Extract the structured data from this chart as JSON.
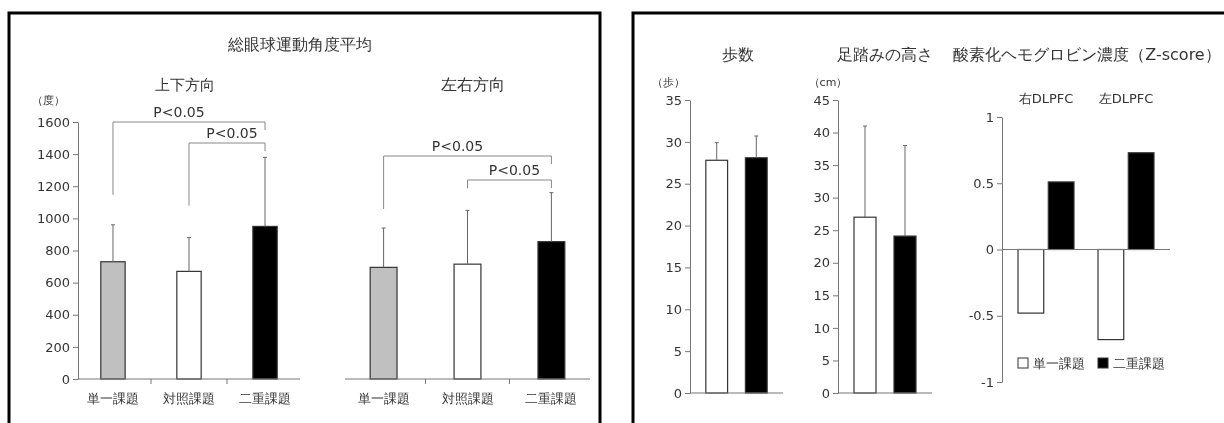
{
  "chart_data": [
    {
      "type": "bar",
      "title": "総眼球運動角度平均",
      "subtitle": "上下方向",
      "ylabel": "（度）",
      "categories": [
        "単一課題",
        "対照課題",
        "二重課題"
      ],
      "values": [
        730,
        670,
        950
      ],
      "colors": [
        "#c0c0c0",
        "#ffffff",
        "#000000"
      ],
      "errors": [
        [
          730,
          960
        ],
        [
          670,
          880
        ],
        [
          950,
          1380
        ]
      ],
      "ylim": [
        0,
        1600
      ],
      "yticks": [
        0,
        200,
        400,
        600,
        800,
        1000,
        1200,
        1400,
        1600
      ],
      "annotations": [
        "P<0.05",
        "P<0.05"
      ]
    },
    {
      "type": "bar",
      "title": "左右方向",
      "categories": [
        "単一課題",
        "対照課題",
        "二重課題"
      ],
      "values": [
        695,
        715,
        855
      ],
      "colors": [
        "#c0c0c0",
        "#ffffff",
        "#000000"
      ],
      "errors": [
        [
          695,
          940
        ],
        [
          715,
          1050
        ],
        [
          855,
          1160
        ]
      ],
      "ylim": [
        0,
        1600
      ],
      "tick_labels": "x",
      "annotations": [
        "P<0.05",
        "P<0.05"
      ]
    },
    {
      "type": "bar",
      "title": "歩数",
      "ylabel": "（歩）",
      "categories": [
        null,
        null
      ],
      "values": [
        27.8,
        28.1
      ],
      "colors": [
        "#ffffff",
        "#000000"
      ],
      "errors": [
        [
          27.8,
          29.9
        ],
        [
          28.1,
          30.7
        ]
      ],
      "ylim": [
        0,
        35
      ],
      "yticks": [
        0,
        5,
        10,
        15,
        20,
        25,
        30,
        35
      ]
    },
    {
      "type": "bar",
      "title": "足踏みの高さ",
      "ylabel": "（cm）",
      "categories": [
        null,
        null
      ],
      "values": [
        27,
        24.1
      ],
      "colors": [
        "#ffffff",
        "#000000"
      ],
      "errors": [
        [
          27,
          41
        ],
        [
          24.1,
          38
        ]
      ],
      "ylim": [
        0,
        45
      ],
      "yticks": [
        0,
        5,
        10,
        15,
        20,
        25,
        30,
        35,
        40,
        45
      ]
    },
    {
      "type": "bar",
      "title": "酸素化ヘモグロビン濃度（Z-score）",
      "categories": [
        "右DLPFC",
        "左DLPFC"
      ],
      "series": [
        {
          "name": "単一課題",
          "color": "#ffffff",
          "values": [
            -0.48,
            -0.68
          ]
        },
        {
          "name": "二重課題",
          "color": "#000000",
          "values": [
            0.51,
            0.73
          ]
        }
      ],
      "ylim": [
        -1,
        1
      ],
      "yticks": [
        -1,
        -0.5,
        0,
        0.5,
        1
      ],
      "legend": "bottom"
    }
  ]
}
